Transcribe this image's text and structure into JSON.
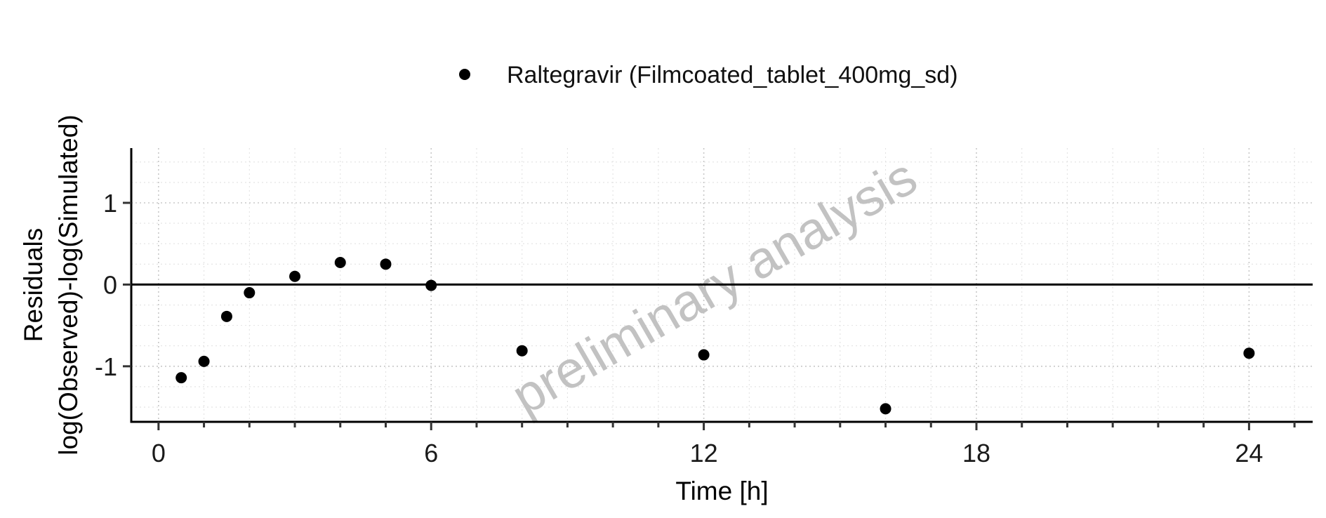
{
  "chart_data": {
    "type": "scatter",
    "xlabel": "Time [h]",
    "ylabel_lines": [
      "Residuals",
      "log(Observed)-log(Simulated)"
    ],
    "xlim": [
      -0.6,
      25.4
    ],
    "ylim": [
      -1.68,
      1.67
    ],
    "x_ticks": [
      0,
      6,
      12,
      18,
      24
    ],
    "x_minor_step": 1,
    "y_ticks": [
      -1,
      0,
      1
    ],
    "y_minor_step": 0.25,
    "reference_line_y": 0,
    "grid": true,
    "legend_position": "top-center",
    "series": [
      {
        "name": "Raltegravir (Filmcoated_tablet_400mg_sd)",
        "color": "#000000",
        "points": [
          {
            "x": 0.5,
            "y": -1.14
          },
          {
            "x": 1.0,
            "y": -0.94
          },
          {
            "x": 1.5,
            "y": -0.39
          },
          {
            "x": 2.0,
            "y": -0.1
          },
          {
            "x": 3.0,
            "y": 0.1
          },
          {
            "x": 4.0,
            "y": 0.27
          },
          {
            "x": 5.0,
            "y": 0.25
          },
          {
            "x": 6.0,
            "y": -0.01
          },
          {
            "x": 8.0,
            "y": -0.81
          },
          {
            "x": 12.0,
            "y": -0.86
          },
          {
            "x": 16.0,
            "y": -1.52
          },
          {
            "x": 24.0,
            "y": -0.84
          }
        ]
      }
    ],
    "watermark": "preliminary analysis"
  }
}
